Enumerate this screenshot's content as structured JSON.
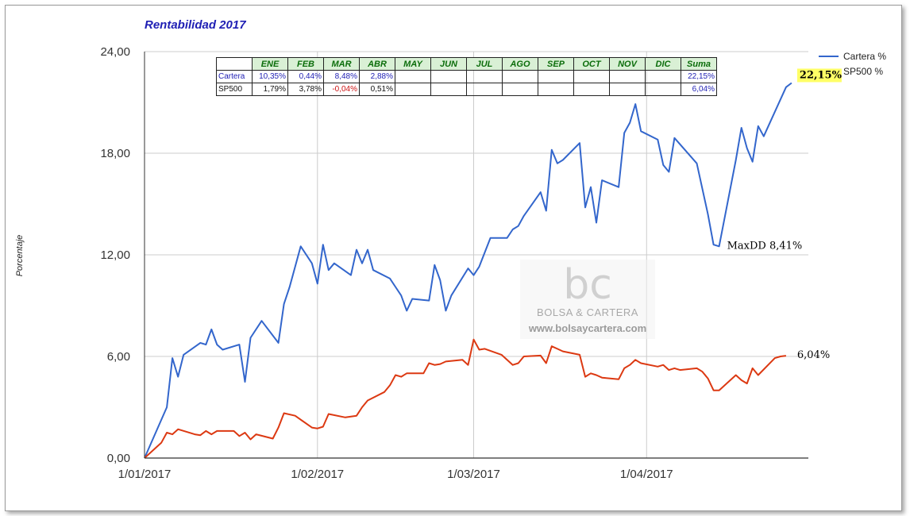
{
  "chart_data": {
    "type": "line",
    "title": "Rentabilidad 2017",
    "ylabel": "Porcentaje",
    "ylim": [
      0,
      24
    ],
    "yticks": [
      "0,00",
      "6,00",
      "12,00",
      "18,00",
      "24,00"
    ],
    "xlim": [
      "2017-01-01",
      "2017-04-30"
    ],
    "xticks": [
      {
        "date": "2017-01-01",
        "label": "1/01/2017"
      },
      {
        "date": "2017-02-01",
        "label": "1/02/2017"
      },
      {
        "date": "2017-03-01",
        "label": "1/03/2017"
      },
      {
        "date": "2017-04-01",
        "label": "1/04/2017"
      }
    ],
    "grid": true,
    "legend_position": "top-right",
    "series": [
      {
        "name": "Cartera %",
        "color": "#3366cc",
        "points": [
          [
            "2017-01-01",
            0
          ],
          [
            "2017-01-05",
            3
          ],
          [
            "2017-01-06",
            5.9
          ],
          [
            "2017-01-07",
            4.8
          ],
          [
            "2017-01-08",
            6.1
          ],
          [
            "2017-01-11",
            6.8
          ],
          [
            "2017-01-12",
            6.7
          ],
          [
            "2017-01-13",
            7.6
          ],
          [
            "2017-01-14",
            6.7
          ],
          [
            "2017-01-15",
            6.4
          ],
          [
            "2017-01-18",
            6.7
          ],
          [
            "2017-01-19",
            4.5
          ],
          [
            "2017-01-20",
            7.1
          ],
          [
            "2017-01-22",
            8.1
          ],
          [
            "2017-01-25",
            6.8
          ],
          [
            "2017-01-26",
            9.1
          ],
          [
            "2017-01-27",
            10.1
          ],
          [
            "2017-01-29",
            12.5
          ],
          [
            "2017-01-31",
            11.5
          ],
          [
            "2017-02-01",
            10.3
          ],
          [
            "2017-02-02",
            12.6
          ],
          [
            "2017-02-03",
            11.1
          ],
          [
            "2017-02-04",
            11.5
          ],
          [
            "2017-02-07",
            10.8
          ],
          [
            "2017-02-08",
            12.3
          ],
          [
            "2017-02-09",
            11.5
          ],
          [
            "2017-02-10",
            12.3
          ],
          [
            "2017-02-11",
            11.1
          ],
          [
            "2017-02-14",
            10.6
          ],
          [
            "2017-02-15",
            10.1
          ],
          [
            "2017-02-16",
            9.6
          ],
          [
            "2017-02-17",
            8.7
          ],
          [
            "2017-02-18",
            9.4
          ],
          [
            "2017-02-21",
            9.3
          ],
          [
            "2017-02-22",
            11.4
          ],
          [
            "2017-02-23",
            10.5
          ],
          [
            "2017-02-24",
            8.7
          ],
          [
            "2017-02-25",
            9.6
          ],
          [
            "2017-02-28",
            11.2
          ],
          [
            "2017-03-01",
            10.8
          ],
          [
            "2017-03-02",
            11.3
          ],
          [
            "2017-03-04",
            13
          ],
          [
            "2017-03-06",
            13
          ],
          [
            "2017-03-07",
            13
          ],
          [
            "2017-03-08",
            13.5
          ],
          [
            "2017-03-09",
            13.7
          ],
          [
            "2017-03-10",
            14.3
          ],
          [
            "2017-03-13",
            15.7
          ],
          [
            "2017-03-14",
            14.6
          ],
          [
            "2017-03-15",
            18.2
          ],
          [
            "2017-03-16",
            17.4
          ],
          [
            "2017-03-17",
            17.6
          ],
          [
            "2017-03-20",
            18.6
          ],
          [
            "2017-03-21",
            14.8
          ],
          [
            "2017-03-22",
            16
          ],
          [
            "2017-03-23",
            13.9
          ],
          [
            "2017-03-24",
            16.4
          ],
          [
            "2017-03-27",
            16
          ],
          [
            "2017-03-28",
            19.2
          ],
          [
            "2017-03-29",
            19.8
          ],
          [
            "2017-03-30",
            20.9
          ],
          [
            "2017-03-31",
            19.3
          ],
          [
            "2017-04-03",
            18.8
          ],
          [
            "2017-04-04",
            17.3
          ],
          [
            "2017-04-05",
            16.9
          ],
          [
            "2017-04-06",
            18.9
          ],
          [
            "2017-04-10",
            17.4
          ],
          [
            "2017-04-12",
            14.4
          ],
          [
            "2017-04-13",
            12.6
          ],
          [
            "2017-04-14",
            12.5
          ],
          [
            "2017-04-17",
            17.6
          ],
          [
            "2017-04-18",
            19.5
          ],
          [
            "2017-04-19",
            18.3
          ],
          [
            "2017-04-20",
            17.5
          ],
          [
            "2017-04-21",
            19.6
          ],
          [
            "2017-04-22",
            19
          ],
          [
            "2017-04-26",
            21.9
          ],
          [
            "2017-04-27",
            22.15
          ]
        ]
      },
      {
        "name": "SP500 %",
        "color": "#dc3912",
        "points": [
          [
            "2017-01-01",
            0
          ],
          [
            "2017-01-04",
            0.9
          ],
          [
            "2017-01-05",
            1.5
          ],
          [
            "2017-01-06",
            1.4
          ],
          [
            "2017-01-07",
            1.7
          ],
          [
            "2017-01-10",
            1.4
          ],
          [
            "2017-01-11",
            1.35
          ],
          [
            "2017-01-12",
            1.6
          ],
          [
            "2017-01-13",
            1.4
          ],
          [
            "2017-01-14",
            1.6
          ],
          [
            "2017-01-17",
            1.6
          ],
          [
            "2017-01-18",
            1.3
          ],
          [
            "2017-01-19",
            1.5
          ],
          [
            "2017-01-20",
            1.1
          ],
          [
            "2017-01-21",
            1.4
          ],
          [
            "2017-01-24",
            1.15
          ],
          [
            "2017-01-25",
            1.8
          ],
          [
            "2017-01-26",
            2.65
          ],
          [
            "2017-01-28",
            2.5
          ],
          [
            "2017-01-31",
            1.8
          ],
          [
            "2017-02-01",
            1.75
          ],
          [
            "2017-02-02",
            1.85
          ],
          [
            "2017-02-03",
            2.6
          ],
          [
            "2017-02-06",
            2.4
          ],
          [
            "2017-02-07",
            2.45
          ],
          [
            "2017-02-08",
            2.5
          ],
          [
            "2017-02-09",
            3
          ],
          [
            "2017-02-10",
            3.4
          ],
          [
            "2017-02-13",
            3.9
          ],
          [
            "2017-02-14",
            4.3
          ],
          [
            "2017-02-15",
            4.9
          ],
          [
            "2017-02-16",
            4.8
          ],
          [
            "2017-02-17",
            5
          ],
          [
            "2017-02-20",
            5
          ],
          [
            "2017-02-21",
            5.6
          ],
          [
            "2017-02-22",
            5.5
          ],
          [
            "2017-02-23",
            5.55
          ],
          [
            "2017-02-24",
            5.7
          ],
          [
            "2017-02-27",
            5.8
          ],
          [
            "2017-02-28",
            5.5
          ],
          [
            "2017-03-01",
            7
          ],
          [
            "2017-03-02",
            6.4
          ],
          [
            "2017-03-03",
            6.45
          ],
          [
            "2017-03-06",
            6.1
          ],
          [
            "2017-03-07",
            5.8
          ],
          [
            "2017-03-08",
            5.5
          ],
          [
            "2017-03-09",
            5.6
          ],
          [
            "2017-03-10",
            6
          ],
          [
            "2017-03-13",
            6.05
          ],
          [
            "2017-03-14",
            5.6
          ],
          [
            "2017-03-15",
            6.6
          ],
          [
            "2017-03-16",
            6.45
          ],
          [
            "2017-03-17",
            6.3
          ],
          [
            "2017-03-20",
            6.1
          ],
          [
            "2017-03-21",
            4.8
          ],
          [
            "2017-03-22",
            5
          ],
          [
            "2017-03-23",
            4.9
          ],
          [
            "2017-03-24",
            4.75
          ],
          [
            "2017-03-27",
            4.65
          ],
          [
            "2017-03-28",
            5.3
          ],
          [
            "2017-03-29",
            5.5
          ],
          [
            "2017-03-30",
            5.8
          ],
          [
            "2017-03-31",
            5.6
          ],
          [
            "2017-04-03",
            5.4
          ],
          [
            "2017-04-04",
            5.5
          ],
          [
            "2017-04-05",
            5.2
          ],
          [
            "2017-04-06",
            5.3
          ],
          [
            "2017-04-07",
            5.2
          ],
          [
            "2017-04-10",
            5.3
          ],
          [
            "2017-04-11",
            5.1
          ],
          [
            "2017-04-12",
            4.7
          ],
          [
            "2017-04-13",
            4.0
          ],
          [
            "2017-04-14",
            4.0
          ],
          [
            "2017-04-17",
            4.9
          ],
          [
            "2017-04-18",
            4.6
          ],
          [
            "2017-04-19",
            4.4
          ],
          [
            "2017-04-20",
            5.3
          ],
          [
            "2017-04-21",
            4.9
          ],
          [
            "2017-04-24",
            5.9
          ],
          [
            "2017-04-25",
            6
          ],
          [
            "2017-04-26",
            6.04
          ]
        ]
      }
    ],
    "annotations": [
      {
        "text": "22,15%",
        "date": "2017-04-27",
        "y": 22.15,
        "highlight": "#ffff66"
      },
      {
        "text": "MaxDD 8,41%",
        "date": "2017-04-14",
        "y": 12.5
      },
      {
        "text": "6,04%",
        "date": "2017-04-26",
        "y": 6.04
      }
    ]
  },
  "table": {
    "headers": [
      "ENE",
      "FEB",
      "MAR",
      "ABR",
      "MAY",
      "JUN",
      "JUL",
      "AGO",
      "SEP",
      "OCT",
      "NOV",
      "DIC",
      "Suma"
    ],
    "rows": [
      {
        "label": "Cartera",
        "values": [
          "10,35%",
          "0,44%",
          "8,48%",
          "2,88%",
          "",
          "",
          "",
          "",
          "",
          "",
          "",
          "",
          "22,15%"
        ]
      },
      {
        "label": "SP500",
        "values": [
          "1,79%",
          "3,78%",
          "-0,04%",
          "0,51%",
          "",
          "",
          "",
          "",
          "",
          "",
          "",
          "",
          "6,04%"
        ]
      }
    ]
  },
  "watermark": {
    "logo": "bc",
    "name": "BOLSA & CARTERA",
    "url": "www.bolsaycartera.com"
  }
}
